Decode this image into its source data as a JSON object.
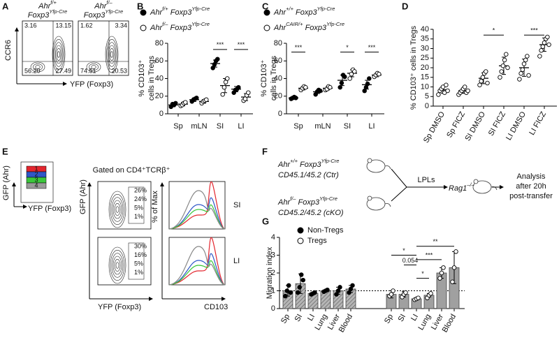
{
  "panel_a": {
    "label": "A",
    "plots": [
      {
        "title": [
          "Ahr",
          "f/+"
        ],
        "subtitle": [
          "Foxp3",
          "Yfp-Cre"
        ],
        "quadrants": [
          "3.16",
          "13.15",
          "56.20",
          "27.49"
        ]
      },
      {
        "title": [
          "Ahr",
          "f/–"
        ],
        "subtitle": [
          "Foxp3",
          "Yfp-Cre"
        ],
        "quadrants": [
          "1.62",
          "3.34",
          "74.51",
          "20.53"
        ]
      }
    ],
    "y_axis": "CCR6",
    "x_axis": "YFP (Foxp3)"
  },
  "panel_e": {
    "label": "E",
    "gate_y_axis": "GFP (Ahr)",
    "gate_x_axis": "YFP (Foxp3)",
    "gates": [
      "1",
      "2",
      "3",
      "4"
    ],
    "header": "Gated on CD4⁺TCRβ⁺",
    "y_axis": "GFP (Ahr)",
    "x_axis": "YFP (Foxp3)",
    "hist_y_axis": "% of Max",
    "hist_x_axis": "CD103",
    "rows": [
      {
        "tissue": "SI",
        "percents": [
          "26%",
          "24%",
          "5%",
          "1%"
        ]
      },
      {
        "tissue": "LI",
        "percents": [
          "30%",
          "16%",
          "5%",
          "1%"
        ]
      }
    ]
  },
  "panel_f": {
    "label": "F",
    "donor_1": [
      "Ahr",
      "+/+",
      " Foxp3",
      "Yfp-Cre"
    ],
    "donor_1_cells": "CD45.1/45.2 (Ctr)",
    "donor_2": [
      "Ahr",
      "f/–",
      " Foxp3",
      "Yfp-Cre"
    ],
    "donor_2_cells": "CD45.2/45.2 (cKO)",
    "transfer": "LPLs",
    "recipient": [
      "Rag1",
      "–/–"
    ],
    "readout": [
      "Analysis",
      "after 20h",
      "post-transfer"
    ]
  },
  "chart_data": [
    {
      "type": "dot",
      "panel": "B",
      "ylabel": [
        "% CD103⁺",
        "cells in Tregs"
      ],
      "categories": [
        "Sp",
        "mLN",
        "SI",
        "LI"
      ],
      "ylim": [
        0,
        80
      ],
      "yticks": [
        0,
        20,
        40,
        60,
        80
      ],
      "annotations": [
        "***",
        "***"
      ],
      "series": [
        {
          "name": [
            "Ahr",
            "f/+",
            " Foxp3",
            "Yfp-Cre"
          ],
          "marker": "filled",
          "color": "#000000",
          "values": [
            10,
            16,
            57,
            28
          ],
          "errors": [
            2,
            2,
            4,
            3
          ],
          "points": [
            [
              8,
              11,
              10,
              12
            ],
            [
              14,
              16,
              17,
              18
            ],
            [
              52,
              56,
              60,
              62
            ],
            [
              24,
              27,
              28,
              30
            ]
          ]
        },
        {
          "name": [
            "Ahr",
            "f/–",
            " Foxp3",
            "Yfp-Cre"
          ],
          "marker": "open",
          "color": "#000000",
          "values": [
            11,
            14,
            32,
            19
          ],
          "errors": [
            2,
            2,
            8,
            4
          ],
          "points": [
            [
              9,
              10,
              12,
              13
            ],
            [
              12,
              14,
              15,
              16
            ],
            [
              22,
              30,
              36,
              40
            ],
            [
              15,
              17,
              21,
              24
            ]
          ]
        }
      ]
    },
    {
      "type": "dot",
      "panel": "C",
      "ylabel": [
        "% CD103⁺",
        "cells in Tregs"
      ],
      "categories": [
        "Sp",
        "mLN",
        "SI",
        "LI"
      ],
      "ylim": [
        0,
        80
      ],
      "yticks": [
        0,
        20,
        40,
        60,
        80
      ],
      "annotations": [
        "***",
        "*",
        "***"
      ],
      "series": [
        {
          "name": [
            "Ahr",
            "+/+",
            " Foxp3",
            "Yfp-Cre"
          ],
          "marker": "filled",
          "color": "#000000",
          "values": [
            18,
            25,
            38,
            33
          ],
          "errors": [
            1,
            2,
            6,
            5
          ],
          "points": [
            [
              17,
              18,
              19,
              18
            ],
            [
              22,
              25,
              27,
              26
            ],
            [
              30,
              35,
              44,
              42
            ],
            [
              26,
              30,
              34,
              40
            ]
          ]
        },
        {
          "name": [
            "Ahr",
            "CAIR/+",
            " Foxp3",
            "Yfp-Cre"
          ],
          "marker": "open",
          "color": "#000000",
          "values": [
            29,
            29,
            46,
            44
          ],
          "errors": [
            2,
            2,
            4,
            2
          ],
          "points": [
            [
              27,
              29,
              31,
              30
            ],
            [
              27,
              28,
              31,
              30
            ],
            [
              40,
              45,
              50,
              48
            ],
            [
              42,
              44,
              46,
              45
            ]
          ]
        }
      ]
    },
    {
      "type": "dot",
      "panel": "D",
      "ylabel": [
        "% CD103⁺ cells in Tregs"
      ],
      "categories": [
        "Sp DMSO",
        "Sp FICZ",
        "SI DMSO",
        "SI FICZ",
        "LI DMSO",
        "LI FICZ"
      ],
      "ylim": [
        0,
        40
      ],
      "yticks": [
        0,
        5,
        10,
        15,
        20,
        25,
        30,
        35,
        40
      ],
      "annotations": [
        "*",
        "***"
      ],
      "series": [
        {
          "name": null,
          "marker": "open",
          "color": "#000000",
          "values": [
            8.5,
            8,
            14.5,
            21,
            20,
            32
          ],
          "errors": [
            1.8,
            1.3,
            2.8,
            4.5,
            4.5,
            3.5
          ],
          "points": [
            [
              6,
              8,
              9,
              10,
              7,
              11,
              8
            ],
            [
              6,
              7,
              8,
              9,
              10,
              7,
              8
            ],
            [
              11,
              13,
              15,
              17,
              18,
              12
            ],
            [
              15,
              18,
              21,
              24,
              27,
              20
            ],
            [
              14,
              17,
              19,
              22,
              24,
              26,
              16
            ],
            [
              26,
              29,
              31,
              33,
              35,
              36,
              32
            ]
          ]
        }
      ]
    },
    {
      "type": "bar",
      "panel": "G",
      "ylabel": [
        "Migration index"
      ],
      "categories": [
        "Sp",
        "SI",
        "LI",
        "Lung",
        "Liver",
        "Blood",
        "Sp",
        "SI",
        "LI",
        "Lung",
        "Liver",
        "Blood"
      ],
      "ylim": [
        0,
        4
      ],
      "yticks": [
        0,
        1,
        2,
        3,
        4
      ],
      "hline": 1,
      "annotations": [
        "*",
        "0.054",
        "*",
        "***",
        "**"
      ],
      "series": [
        {
          "name": [
            "Non-Tregs"
          ],
          "marker": "filled",
          "color": "#9a9a9a",
          "pattern": "hatch",
          "values": [
            1.0,
            1.4,
            0.85,
            1.0,
            1.0,
            1.1,
            null,
            null,
            null,
            null,
            null,
            null
          ],
          "errors": [
            0.3,
            0.55,
            0.05,
            0.05,
            0.2,
            0.2,
            null,
            null,
            null,
            null,
            null,
            null
          ],
          "points": [
            [
              0.7,
              1.0,
              1.3,
              0.9
            ],
            [
              0.9,
              1.2,
              1.9,
              1.6
            ],
            [
              0.8,
              0.85,
              0.9
            ],
            [
              0.95,
              1.0,
              1.05
            ],
            [
              0.8,
              1.0,
              1.2
            ],
            [
              0.9,
              1.1,
              1.3
            ],
            null,
            null,
            null,
            null,
            null,
            null
          ]
        },
        {
          "name": [
            "Tregs"
          ],
          "marker": "open",
          "color": "#a0a0a0",
          "pattern": "solid",
          "values": [
            null,
            null,
            null,
            null,
            null,
            null,
            0.8,
            0.8,
            0.55,
            0.75,
            2.0,
            2.3
          ],
          "errors": [
            null,
            null,
            null,
            null,
            null,
            null,
            0.2,
            0.15,
            0.05,
            0.1,
            0.3,
            0.9
          ],
          "points": [
            null,
            null,
            null,
            null,
            null,
            null,
            [
              0.7,
              0.8,
              1.0
            ],
            [
              0.65,
              0.8,
              0.9
            ],
            [
              0.5,
              0.55,
              0.6
            ],
            [
              0.6,
              0.75,
              0.85
            ],
            [
              1.7,
              2.0,
              2.3
            ],
            [
              1.5,
              2.3,
              3.2
            ]
          ]
        }
      ]
    }
  ]
}
